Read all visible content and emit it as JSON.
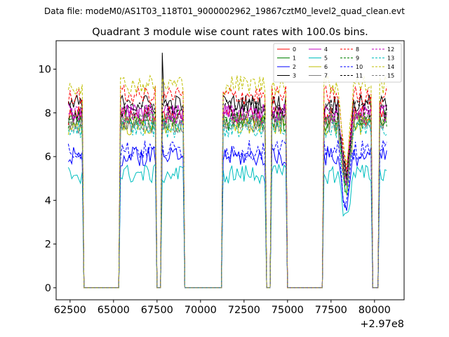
{
  "figure": {
    "suptitle": "Data file: modeM0/AS1T03_118T01_9000002962_19867cztM0_level2_quad_clean.evt"
  },
  "chart_data": {
    "type": "line",
    "title": "Quadrant 3 module wise count rates with 100.0s bins.",
    "xlabel": "",
    "ylabel": "",
    "x_offset_label": "+2.97e8",
    "xlim": [
      61700,
      81700
    ],
    "ylim": [
      -0.55,
      11.3
    ],
    "x_ticks": [
      62500,
      65000,
      67500,
      70000,
      72500,
      75000,
      77500,
      80000
    ],
    "x_tick_labels": [
      "62500",
      "65000",
      "67500",
      "70000",
      "72500",
      "75000",
      "77500",
      "80000"
    ],
    "y_ticks": [
      0,
      2,
      4,
      6,
      8,
      10
    ],
    "y_tick_labels": [
      "0",
      "2",
      "4",
      "6",
      "8",
      "10"
    ],
    "grid": false,
    "legend_location": "upper right",
    "legend_columns": 4,
    "x_segments": [
      {
        "start": 62400,
        "end": 63200,
        "level": "on"
      },
      {
        "start": 63300,
        "end": 65300,
        "level": "off"
      },
      {
        "start": 65400,
        "end": 67400,
        "level": "on"
      },
      {
        "start": 67500,
        "end": 67700,
        "level": "off"
      },
      {
        "start": 67800,
        "end": 69000,
        "level": "on"
      },
      {
        "start": 69100,
        "end": 71200,
        "level": "off"
      },
      {
        "start": 71300,
        "end": 73700,
        "level": "on"
      },
      {
        "start": 73800,
        "end": 74000,
        "level": "off"
      },
      {
        "start": 74100,
        "end": 74900,
        "level": "on"
      },
      {
        "start": 75000,
        "end": 77000,
        "level": "off"
      },
      {
        "start": 77100,
        "end": 79800,
        "level": "on"
      },
      {
        "start": 79900,
        "end": 80200,
        "level": "off"
      },
      {
        "start": 80300,
        "end": 80700,
        "level": "on"
      }
    ],
    "dip_window": {
      "start": 77900,
      "end": 78800,
      "depth_fraction": 0.42
    },
    "spike": {
      "series": "3",
      "x": 67800,
      "y": 10.75
    },
    "series": [
      {
        "name": "0",
        "color": "#ff0000",
        "dashed": false,
        "level": 7.9
      },
      {
        "name": "1",
        "color": "#008000",
        "dashed": false,
        "level": 7.6
      },
      {
        "name": "2",
        "color": "#0000ff",
        "dashed": false,
        "level": 6.0
      },
      {
        "name": "3",
        "color": "#000000",
        "dashed": false,
        "level": 8.4
      },
      {
        "name": "4",
        "color": "#c000c0",
        "dashed": false,
        "level": 8.0
      },
      {
        "name": "5",
        "color": "#00bfbf",
        "dashed": false,
        "level": 5.2
      },
      {
        "name": "6",
        "color": "#bfbf00",
        "dashed": false,
        "level": 7.4
      },
      {
        "name": "7",
        "color": "#7f7f7f",
        "dashed": false,
        "level": 7.5
      },
      {
        "name": "8",
        "color": "#ff0000",
        "dashed": true,
        "level": 8.8
      },
      {
        "name": "9",
        "color": "#008000",
        "dashed": true,
        "level": 7.7
      },
      {
        "name": "10",
        "color": "#0000ff",
        "dashed": true,
        "level": 6.3
      },
      {
        "name": "11",
        "color": "#000000",
        "dashed": true,
        "level": 8.2
      },
      {
        "name": "12",
        "color": "#c000c0",
        "dashed": true,
        "level": 7.9
      },
      {
        "name": "13",
        "color": "#00bfbf",
        "dashed": true,
        "level": 7.3
      },
      {
        "name": "14",
        "color": "#bfbf00",
        "dashed": true,
        "level": 9.3
      },
      {
        "name": "15",
        "color": "#7f7f7f",
        "dashed": true,
        "level": 7.6
      }
    ]
  }
}
